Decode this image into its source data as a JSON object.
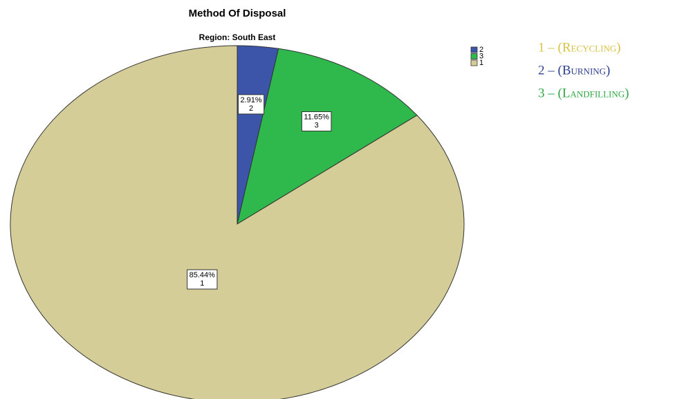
{
  "chart_data": {
    "type": "pie",
    "title": "Method Of Disposal",
    "subtitle": "Region: South East",
    "categories": [
      "2",
      "3",
      "1"
    ],
    "values": [
      2.91,
      11.65,
      85.44
    ],
    "value_labels": [
      "2.91%",
      "11.65%",
      "85.44%"
    ],
    "colors": [
      "#3d55a8",
      "#2fb84c",
      "#d4cd98"
    ],
    "legend": "top-right",
    "annotations": [
      {
        "text": "1 – (Recycling)",
        "color": "#d8c347"
      },
      {
        "text": "2 – (Burning)",
        "color": "#2e3f8f"
      },
      {
        "text": "3 – (Landfilling)",
        "color": "#2ea744"
      }
    ]
  }
}
